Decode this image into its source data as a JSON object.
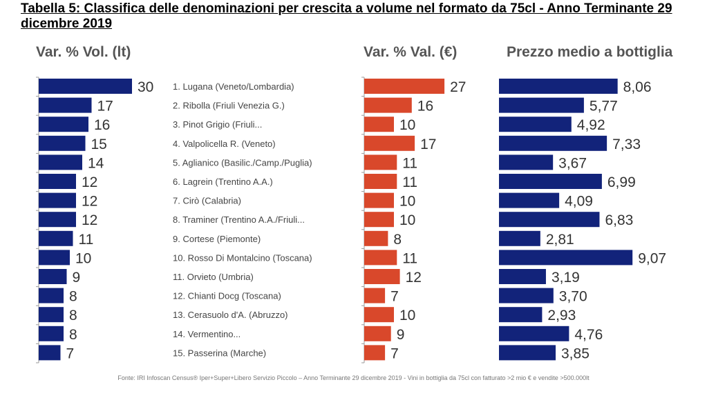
{
  "title": "Tabella 5:  Classifica delle denominazioni per crescita  a volume nel formato da 75cl -  Anno Terminante 29 dicembre 2019",
  "colors": {
    "volume": "#12237a",
    "value": "#d9482b",
    "price": "#12237a",
    "header": "#555555"
  },
  "chart_data": {
    "type": "bar",
    "orientation": "horizontal",
    "categories": [
      "1. Lugana (Veneto/Lombardia)",
      "2. Ribolla (Friuli Venezia G.)",
      "3. Pinot Grigio (Friuli...",
      "4. Valpolicella R. (Veneto)",
      "5. Aglianico (Basilic./Camp./Puglia)",
      "6. Lagrein (Trentino A.A.)",
      "7. Cirò (Calabria)",
      "8. Traminer (Trentino A.A./Friuli...",
      "9. Cortese (Piemonte)",
      "10. Rosso Di Montalcino (Toscana)",
      "11. Orvieto (Umbria)",
      "12. Chianti Docg (Toscana)",
      "13. Cerasuolo d'A. (Abruzzo)",
      "14. Vermentino...",
      "15. Passerina (Marche)"
    ],
    "series": [
      {
        "name": "Var. % Vol. (lt)",
        "values": [
          30,
          17,
          16,
          15,
          14,
          12,
          12,
          12,
          11,
          10,
          9,
          8,
          8,
          8,
          7
        ],
        "labels": [
          "30",
          "17",
          "16",
          "15",
          "14",
          "12",
          "12",
          "12",
          "11",
          "10",
          "9",
          "8",
          "8",
          "8",
          "7"
        ]
      },
      {
        "name": "Var. % Val. (€)",
        "values": [
          27,
          16,
          10,
          17,
          11,
          11,
          10,
          10,
          8,
          11,
          12,
          7,
          10,
          9,
          7
        ],
        "labels": [
          "27",
          "16",
          "10",
          "17",
          "11",
          "11",
          "10",
          "10",
          "8",
          "11",
          "12",
          "7",
          "10",
          "9",
          "7"
        ]
      },
      {
        "name": "Prezzo medio a bottiglia",
        "values": [
          8.06,
          5.77,
          4.92,
          7.33,
          3.67,
          6.99,
          4.09,
          6.83,
          2.81,
          9.07,
          3.19,
          3.7,
          2.93,
          4.76,
          3.85
        ],
        "labels": [
          "8,06",
          "5,77",
          "4,92",
          "7,33",
          "3,67",
          "6,99",
          "4,09",
          "6,83",
          "2,81",
          "9,07",
          "3,19",
          "3,70",
          "2,93",
          "4,76",
          "3,85"
        ]
      }
    ]
  },
  "source": "Fonte: IRI Infoscan Census® Iper+Super+Libero Servizio Piccolo – Anno Terminante 29 dicembre 2019 - Vini in bottiglia da 75cl con fatturato >2 mio € e vendite >500.000lt"
}
